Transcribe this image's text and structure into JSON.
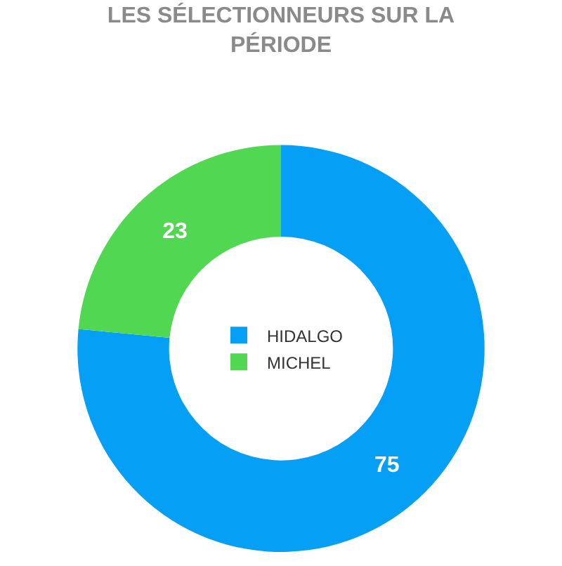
{
  "chart_data": {
    "type": "donut",
    "title": "LES SÉLECTIONNEURS SUR LA PÉRIODE",
    "categories": [
      "HIDALGO",
      "MICHEL"
    ],
    "values": [
      75,
      23
    ],
    "colors": [
      "#059ff5",
      "#52d752"
    ],
    "data_labels": true,
    "legend": "center"
  }
}
